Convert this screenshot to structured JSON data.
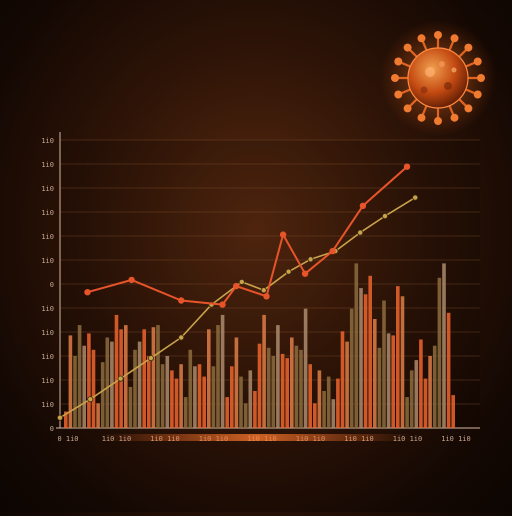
{
  "chart_data": {
    "type": "bar",
    "title": "",
    "xlabel": "",
    "ylabel": "",
    "ylim": [
      0,
      14
    ],
    "grid": true,
    "legend": "none",
    "y_tick_labels": [
      "0",
      "1i0",
      "1i0",
      "1i0",
      "1i0",
      "1i0",
      "0",
      "1i0",
      "1i0",
      "1i0",
      "1i0",
      "1i0",
      "1i0"
    ],
    "x_tick_labels": [
      "0 1i0",
      "1i0 1i0",
      "1i0 1i0",
      "1i0 1i0",
      "1i0 1i0",
      "1i0 1i0",
      "1i0 1i0",
      "1i0 1i0",
      "1i0 1i0"
    ],
    "bar_values": [
      0.8,
      4.5,
      3.5,
      5.0,
      4.0,
      4.6,
      3.8,
      1.2,
      3.2,
      4.4,
      4.2,
      5.5,
      4.8,
      5.0,
      2.0,
      3.8,
      4.2,
      4.8,
      3.5,
      4.9,
      5.0,
      3.1,
      3.5,
      2.8,
      2.4,
      3.1,
      1.5,
      3.8,
      3.0,
      3.1,
      2.5,
      4.8,
      3.0,
      5.0,
      5.5,
      1.5,
      3.0,
      4.4,
      2.5,
      1.2,
      2.8,
      1.8,
      4.1,
      5.5,
      3.9,
      3.5,
      5.0,
      3.6,
      3.4,
      4.4,
      4.0,
      3.8,
      5.8,
      3.1,
      1.2,
      2.8,
      1.8,
      2.5,
      1.4,
      2.4,
      4.7,
      4.2,
      5.8,
      8.0,
      6.8,
      6.5,
      7.4,
      5.3,
      3.9,
      6.2,
      4.6,
      4.5,
      6.9,
      6.4,
      1.5,
      2.8,
      3.3,
      4.3,
      2.4,
      3.5,
      4.0,
      7.3,
      8.0,
      5.6,
      1.6
    ],
    "series": [
      {
        "values": [
          0.5,
          1.4,
          2.4,
          3.4,
          4.4,
          6.0,
          7.1,
          6.7,
          7.6,
          8.2,
          8.6,
          9.5,
          10.3,
          11.2
        ]
      },
      {
        "values": [
          6.6,
          7.2,
          6.2,
          6.0,
          6.9,
          6.4,
          9.4,
          7.5,
          8.6,
          10.8,
          12.7
        ]
      }
    ],
    "series_x": [
      [
        0,
        1.1,
        2.2,
        3.3,
        4.4,
        5.5,
        6.6,
        7.4,
        8.3,
        9.1,
        10.0,
        10.9,
        11.8,
        12.9
      ],
      [
        1.0,
        2.6,
        4.4,
        5.9,
        6.4,
        7.5,
        8.1,
        8.9,
        9.9,
        11.0,
        12.6
      ]
    ],
    "series_colors": [
      "#c9a24a",
      "#e8542a"
    ],
    "bar_colors": [
      "#e8622c",
      "#a9876a",
      "#8a6a3c",
      "#d97a45"
    ]
  },
  "decoration": {
    "name": "virus-illustration",
    "color": "#e06420"
  }
}
